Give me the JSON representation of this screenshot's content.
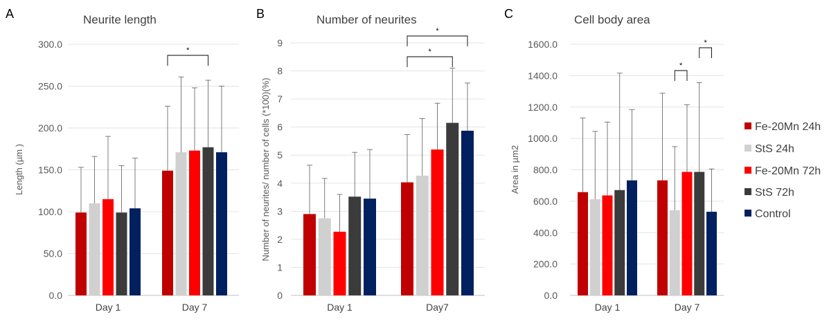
{
  "legend": [
    {
      "name": "Fe-20Mn 24h",
      "color": "#C00000"
    },
    {
      "name": "StS 24h",
      "color": "#D0D0D0"
    },
    {
      "name": "Fe-20Mn 72h",
      "color": "#FF0000"
    },
    {
      "name": "StS 72h",
      "color": "#3B3B3B"
    },
    {
      "name": "Control",
      "color": "#002060"
    }
  ],
  "chart_data": [
    {
      "type": "bar",
      "panel": "A",
      "title": "Neurite length",
      "ylabel": "Length (µm )",
      "xlabel": "",
      "categories": [
        "Day 1",
        "Day 7"
      ],
      "ylim": [
        0,
        300
      ],
      "yticks": [
        "0.0",
        "50.0",
        "100.0",
        "150.0",
        "200.0",
        "250.0",
        "300.0"
      ],
      "grid": true,
      "series": [
        {
          "name": "Fe-20Mn 24h",
          "values": [
            99,
            149
          ],
          "errors": [
            54,
            77
          ]
        },
        {
          "name": "StS 24h",
          "values": [
            110,
            171
          ],
          "errors": [
            56,
            90
          ]
        },
        {
          "name": "Fe-20Mn 72h",
          "values": [
            115,
            173
          ],
          "errors": [
            75,
            75
          ]
        },
        {
          "name": "StS 72h",
          "values": [
            99,
            177
          ],
          "errors": [
            56,
            80
          ]
        },
        {
          "name": "Control",
          "values": [
            104,
            171
          ],
          "errors": [
            60,
            79
          ]
        }
      ],
      "significance": [
        {
          "group": 1,
          "from": 0,
          "to": 3,
          "label": "*"
        }
      ]
    },
    {
      "type": "bar",
      "panel": "B",
      "title": "Number of neurites",
      "ylabel": "Number of neurites/ number of cells (*100)(%)",
      "xlabel": "",
      "categories": [
        "Day 1",
        "Day7"
      ],
      "ylim": [
        0,
        9
      ],
      "yticks": [
        "0",
        "1",
        "2",
        "3",
        "4",
        "5",
        "6",
        "7",
        "8",
        "9"
      ],
      "grid": true,
      "series": [
        {
          "name": "Fe-20Mn 24h",
          "values": [
            2.9,
            4.03
          ],
          "errors": [
            1.74,
            1.7
          ]
        },
        {
          "name": "StS 24h",
          "values": [
            2.75,
            4.27
          ],
          "errors": [
            1.42,
            2.03
          ]
        },
        {
          "name": "Fe-20Mn 72h",
          "values": [
            2.27,
            5.2
          ],
          "errors": [
            1.33,
            1.65
          ]
        },
        {
          "name": "StS 72h",
          "values": [
            3.52,
            6.15
          ],
          "errors": [
            1.58,
            1.95
          ]
        },
        {
          "name": "Control",
          "values": [
            3.45,
            5.87
          ],
          "errors": [
            1.75,
            1.7
          ]
        }
      ],
      "significance": [
        {
          "group": 1,
          "from": 0,
          "to": 4,
          "label": "*"
        },
        {
          "group": 1,
          "from": 0,
          "to": 3,
          "label": "*"
        }
      ]
    },
    {
      "type": "bar",
      "panel": "C",
      "title": "Cell body area",
      "ylabel": "Area in µm2",
      "xlabel": "",
      "categories": [
        "Day 1",
        "Day 7"
      ],
      "ylim": [
        0,
        1600
      ],
      "yticks": [
        "0.0",
        "200.0",
        "400.0",
        "600.0",
        "800.0",
        "1000.0",
        "1200.0",
        "1400.0",
        "1600.0"
      ],
      "grid": true,
      "series": [
        {
          "name": "Fe-20Mn 24h",
          "values": [
            658,
            733
          ],
          "errors": [
            472,
            555
          ]
        },
        {
          "name": "StS 24h",
          "values": [
            613,
            543
          ],
          "errors": [
            432,
            405
          ]
        },
        {
          "name": "Fe-20Mn 72h",
          "values": [
            637,
            787
          ],
          "errors": [
            467,
            428
          ]
        },
        {
          "name": "StS 72h",
          "values": [
            671,
            787
          ],
          "errors": [
            745,
            568
          ]
        },
        {
          "name": "Control",
          "values": [
            733,
            533
          ],
          "errors": [
            450,
            273
          ]
        }
      ],
      "significance": [
        {
          "group": 1,
          "from": 1,
          "to": 2,
          "label": "*"
        },
        {
          "group": 1,
          "from": 3,
          "to": 4,
          "label": "*"
        }
      ]
    }
  ]
}
